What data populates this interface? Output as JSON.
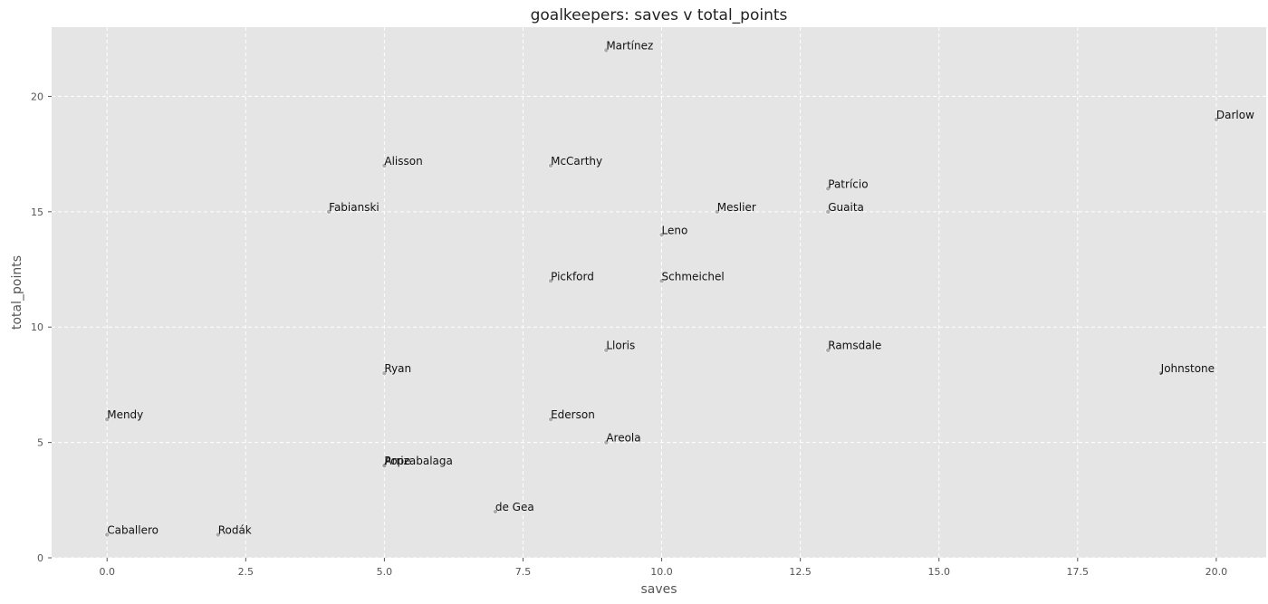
{
  "chart_data": {
    "type": "scatter",
    "title": "goalkeepers: saves v total_points",
    "xlabel": "saves",
    "ylabel": "total_points",
    "xlim": [
      -1.0,
      20.9
    ],
    "ylim": [
      0,
      23.0
    ],
    "xticks": [
      0.0,
      2.5,
      5.0,
      7.5,
      10.0,
      12.5,
      15.0,
      17.5,
      20.0
    ],
    "xtick_labels": [
      "0.0",
      "2.5",
      "5.0",
      "7.5",
      "10.0",
      "12.5",
      "15.0",
      "17.5",
      "20.0"
    ],
    "yticks": [
      0,
      5,
      10,
      15,
      20
    ],
    "ytick_labels": [
      "0",
      "5",
      "10",
      "15",
      "20"
    ],
    "grid": true,
    "style": "ggplot",
    "colors": {
      "plot_bg": "#e5e5e5",
      "grid": "#ffffff",
      "marker": "#999999"
    },
    "points": [
      {
        "label": "Martínez",
        "x": 9,
        "y": 22
      },
      {
        "label": "Darlow",
        "x": 20,
        "y": 19
      },
      {
        "label": "Alisson",
        "x": 5,
        "y": 17
      },
      {
        "label": "McCarthy",
        "x": 8,
        "y": 17
      },
      {
        "label": "Patrício",
        "x": 13,
        "y": 16
      },
      {
        "label": "Fabianski",
        "x": 4,
        "y": 15
      },
      {
        "label": "Meslier",
        "x": 11,
        "y": 15
      },
      {
        "label": "Guaita",
        "x": 13,
        "y": 15
      },
      {
        "label": "Leno",
        "x": 10,
        "y": 14
      },
      {
        "label": "Pickford",
        "x": 8,
        "y": 12
      },
      {
        "label": "Schmeichel",
        "x": 10,
        "y": 12
      },
      {
        "label": "Lloris",
        "x": 9,
        "y": 9
      },
      {
        "label": "Ramsdale",
        "x": 13,
        "y": 9
      },
      {
        "label": "Ryan",
        "x": 5,
        "y": 8
      },
      {
        "label": "Johnstone",
        "x": 19,
        "y": 8
      },
      {
        "label": "Mendy",
        "x": 0,
        "y": 6
      },
      {
        "label": "Ederson",
        "x": 8,
        "y": 6
      },
      {
        "label": "Areola",
        "x": 9,
        "y": 5
      },
      {
        "label": "Pope",
        "x": 5,
        "y": 4
      },
      {
        "label": "Arrizabalaga",
        "x": 5,
        "y": 4
      },
      {
        "label": "de Gea",
        "x": 7,
        "y": 2
      },
      {
        "label": "Caballero",
        "x": 0,
        "y": 1
      },
      {
        "label": "Rodák",
        "x": 2,
        "y": 1
      }
    ]
  }
}
